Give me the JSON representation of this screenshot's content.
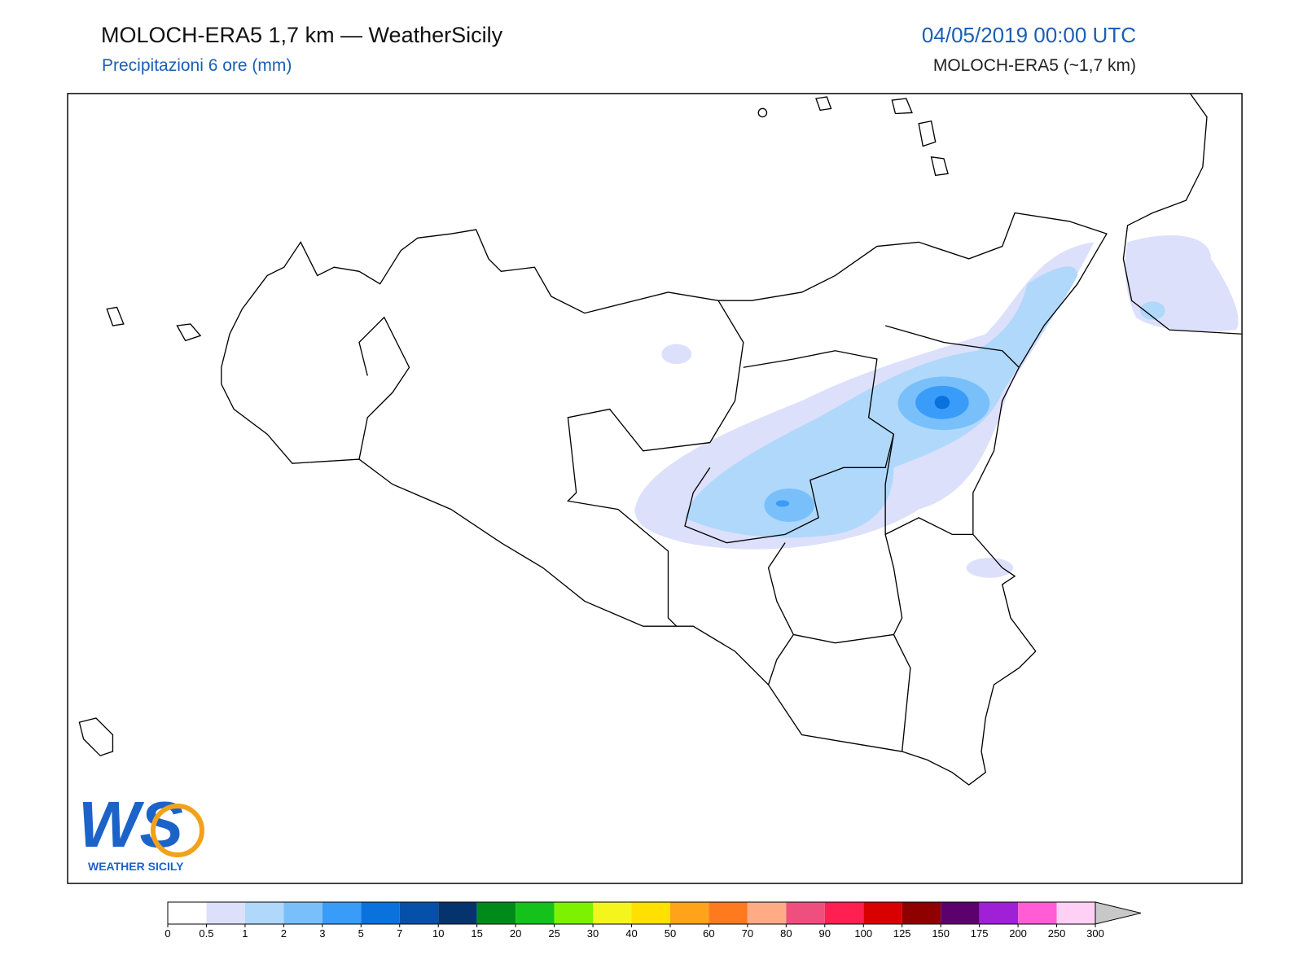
{
  "header": {
    "title": "MOLOCH-ERA5 1,7 km — WeatherSicily",
    "subtitle": "Precipitazioni 6 ore (mm)",
    "date": "04/05/2019 00:00 UTC",
    "model": "MOLOCH-ERA5 (~1,7 km)"
  },
  "logo": {
    "mark": "WS",
    "text": "WEATHER SICILY"
  },
  "colorbar": {
    "levels": [
      0,
      0.5,
      1,
      2,
      3,
      5,
      7,
      10,
      15,
      20,
      25,
      30,
      40,
      50,
      60,
      70,
      80,
      90,
      100,
      125,
      150,
      175,
      200,
      250,
      300
    ],
    "colors": [
      "#ffffff",
      "#dde0fb",
      "#b0d8fb",
      "#79c0fb",
      "#3a9cf9",
      "#0a72dc",
      "#0550a8",
      "#04336e",
      "#008a1a",
      "#14c21b",
      "#7cf200",
      "#f5f51e",
      "#ffe000",
      "#ffa31a",
      "#ff7a1f",
      "#ffac85",
      "#ee4f7f",
      "#ff1f50",
      "#d90000",
      "#8f0000",
      "#5c006e",
      "#a020d8",
      "#ff5cd6",
      "#ffd0f5"
    ],
    "extend_color": "#c8c8c8"
  }
}
